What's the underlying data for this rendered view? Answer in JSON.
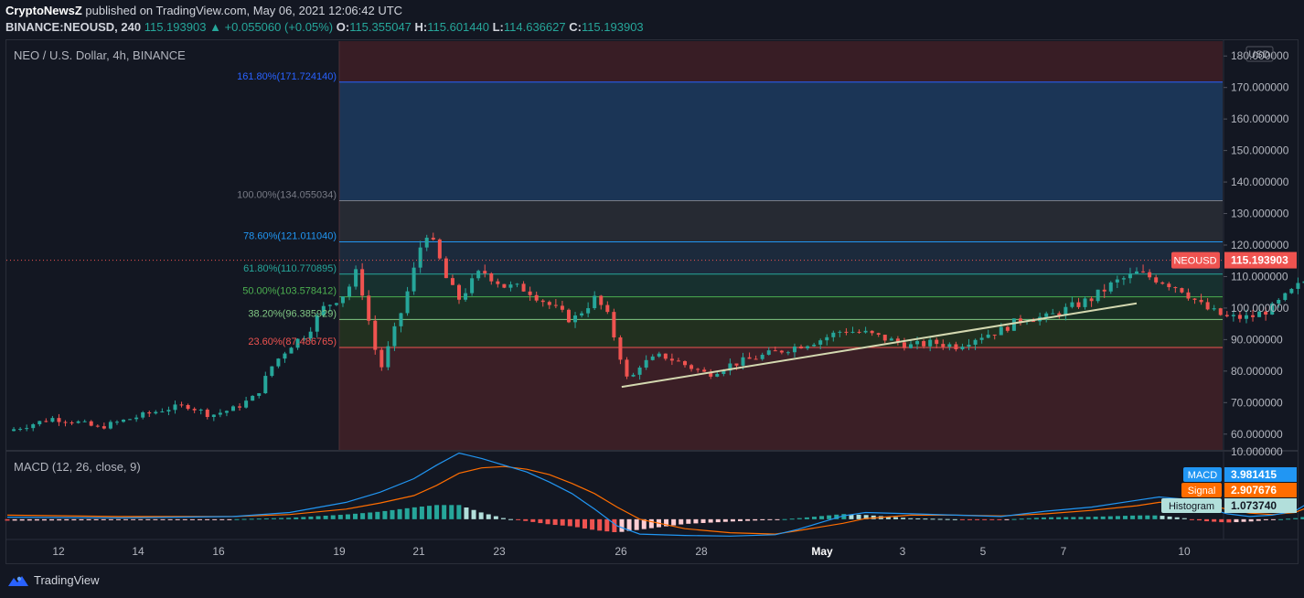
{
  "header": {
    "publisher": "CryptoNewsZ",
    "published_text": "published on TradingView.com, May 06, 2021 12:06:42 UTC",
    "symbol": "BINANCE:NEOUSD, 240",
    "price": "115.193903",
    "change": "+0.055060 (+0.05%)",
    "o_label": "O:",
    "o": "115.355047",
    "h_label": "H:",
    "h": "115.601440",
    "l_label": "L:",
    "l": "114.636627",
    "c_label": "C:",
    "c": "115.193903"
  },
  "footer": {
    "brand": "TradingView"
  },
  "colors": {
    "background": "#131722",
    "up": "#26a69a",
    "down": "#ef5350",
    "fib_blue": "#1e3a5f",
    "fib_red": "#4a2028",
    "trendline": "#d4d8b0",
    "macd": "#2196f3",
    "signal": "#ff6d00"
  },
  "chart_data": [
    {
      "type": "candlestick",
      "title": "NEO / U.S. Dollar, 4h, BINANCE",
      "currency_label": "USD",
      "ylim": [
        55,
        185
      ],
      "yticks": [
        "180.000000",
        "170.000000",
        "160.000000",
        "150.000000",
        "140.000000",
        "130.000000",
        "120.000000",
        "110.000000",
        "100.000000",
        "90.000000",
        "80.000000",
        "70.000000",
        "60.000000"
      ],
      "ytick_values": [
        180,
        170,
        160,
        150,
        140,
        130,
        120,
        110,
        100,
        90,
        80,
        70,
        60
      ],
      "xticks": [
        "12",
        "14",
        "16",
        "19",
        "21",
        "23",
        "26",
        "28",
        "May",
        "3",
        "5",
        "7",
        "10"
      ],
      "last_price_label": "NEOUSD",
      "last_price": "115.193903",
      "last_price_value": 115.19,
      "fib_levels": [
        {
          "label": "161.80%(171.724140)",
          "value": 171.72,
          "color": "#2962ff"
        },
        {
          "label": "100.00%(134.055034)",
          "value": 134.06,
          "color": "#787b86"
        },
        {
          "label": "78.60%(121.011040)",
          "value": 121.01,
          "color": "#2196f3"
        },
        {
          "label": "61.80%(110.770895)",
          "value": 110.77,
          "color": "#26a69a"
        },
        {
          "label": "50.00%(103.578412)",
          "value": 103.58,
          "color": "#4caf50"
        },
        {
          "label": "38.20%(96.385929)",
          "value": 96.39,
          "color": "#81c784"
        },
        {
          "label": "23.60%(87.486765)",
          "value": 87.49,
          "color": "#ef5350"
        }
      ],
      "trendline": {
        "start": [
          0.544,
          75
        ],
        "end": [
          1.0,
          101.5
        ]
      },
      "price_path": [
        [
          0,
          61
        ],
        [
          0.02,
          63
        ],
        [
          0.04,
          65
        ],
        [
          0.06,
          64
        ],
        [
          0.08,
          62
        ],
        [
          0.1,
          64
        ],
        [
          0.12,
          66
        ],
        [
          0.14,
          68
        ],
        [
          0.16,
          69
        ],
        [
          0.18,
          66
        ],
        [
          0.2,
          68
        ],
        [
          0.22,
          72
        ],
        [
          0.235,
          82
        ],
        [
          0.25,
          88
        ],
        [
          0.265,
          92
        ],
        [
          0.28,
          100
        ],
        [
          0.3,
          105
        ],
        [
          0.31,
          112
        ],
        [
          0.32,
          96
        ],
        [
          0.33,
          80
        ],
        [
          0.34,
          90
        ],
        [
          0.35,
          100
        ],
        [
          0.36,
          112
        ],
        [
          0.37,
          125
        ],
        [
          0.38,
          118
        ],
        [
          0.39,
          108
        ],
        [
          0.4,
          103
        ],
        [
          0.42,
          112
        ],
        [
          0.44,
          107
        ],
        [
          0.46,
          106
        ],
        [
          0.48,
          101
        ],
        [
          0.5,
          96
        ],
        [
          0.52,
          103
        ],
        [
          0.53,
          99
        ],
        [
          0.54,
          88
        ],
        [
          0.55,
          76
        ],
        [
          0.56,
          82
        ],
        [
          0.58,
          85
        ],
        [
          0.6,
          82
        ],
        [
          0.62,
          79
        ],
        [
          0.64,
          82
        ],
        [
          0.66,
          84
        ],
        [
          0.68,
          86
        ],
        [
          0.7,
          88
        ],
        [
          0.72,
          90
        ],
        [
          0.74,
          93
        ],
        [
          0.76,
          92
        ],
        [
          0.78,
          90
        ],
        [
          0.8,
          88
        ],
        [
          0.82,
          89
        ],
        [
          0.84,
          88
        ],
        [
          0.86,
          91
        ],
        [
          0.88,
          93
        ],
        [
          0.9,
          97
        ],
        [
          0.92,
          97
        ],
        [
          0.94,
          100
        ],
        [
          0.96,
          103
        ],
        [
          0.98,
          108
        ],
        [
          1.0,
          111
        ],
        [
          1.02,
          109
        ],
        [
          1.04,
          106
        ],
        [
          1.06,
          100
        ],
        [
          1.08,
          97
        ],
        [
          1.1,
          97
        ],
        [
          1.12,
          100
        ],
        [
          1.14,
          106
        ],
        [
          1.16,
          112
        ],
        [
          1.18,
          118
        ],
        [
          1.2,
          115
        ]
      ]
    },
    {
      "type": "macd",
      "title": "MACD (12, 26, close, 9)",
      "ylim": [
        -3,
        10
      ],
      "ytick_label": "10.000000",
      "ytick_value": 10,
      "labels": [
        {
          "name": "MACD",
          "value": "3.981415",
          "color": "#2196f3"
        },
        {
          "name": "Signal",
          "value": "2.907676",
          "color": "#ff6d00"
        },
        {
          "name": "Histogram",
          "value": "1.073740",
          "color": "#b2dfdb"
        }
      ],
      "macd_path": [
        [
          0,
          0.3
        ],
        [
          0.1,
          0.2
        ],
        [
          0.2,
          0.4
        ],
        [
          0.25,
          1
        ],
        [
          0.3,
          2.5
        ],
        [
          0.33,
          4
        ],
        [
          0.36,
          6
        ],
        [
          0.38,
          8
        ],
        [
          0.4,
          9.8
        ],
        [
          0.42,
          9
        ],
        [
          0.44,
          8
        ],
        [
          0.46,
          7
        ],
        [
          0.48,
          5.5
        ],
        [
          0.5,
          3.8
        ],
        [
          0.52,
          1.5
        ],
        [
          0.54,
          -1
        ],
        [
          0.56,
          -2.2
        ],
        [
          0.6,
          -2.4
        ],
        [
          0.64,
          -2.5
        ],
        [
          0.68,
          -2.3
        ],
        [
          0.7,
          -1.5
        ],
        [
          0.74,
          0.5
        ],
        [
          0.76,
          1
        ],
        [
          0.8,
          0.8
        ],
        [
          0.84,
          0.6
        ],
        [
          0.88,
          0.4
        ],
        [
          0.92,
          1.2
        ],
        [
          0.96,
          1.8
        ],
        [
          1.0,
          2.8
        ],
        [
          1.02,
          3.3
        ],
        [
          1.04,
          3
        ],
        [
          1.06,
          1.8
        ],
        [
          1.08,
          0.8
        ],
        [
          1.1,
          0.4
        ],
        [
          1.12,
          0.6
        ],
        [
          1.14,
          1.2
        ],
        [
          1.16,
          3.2
        ],
        [
          1.18,
          3.98
        ]
      ],
      "signal_path": [
        [
          0,
          0.6
        ],
        [
          0.1,
          0.4
        ],
        [
          0.2,
          0.4
        ],
        [
          0.25,
          0.7
        ],
        [
          0.3,
          1.5
        ],
        [
          0.33,
          2.4
        ],
        [
          0.36,
          3.5
        ],
        [
          0.38,
          5
        ],
        [
          0.4,
          6.8
        ],
        [
          0.42,
          7.6
        ],
        [
          0.44,
          7.8
        ],
        [
          0.46,
          7.4
        ],
        [
          0.48,
          6.6
        ],
        [
          0.5,
          5.3
        ],
        [
          0.52,
          3.8
        ],
        [
          0.54,
          1.8
        ],
        [
          0.56,
          0
        ],
        [
          0.6,
          -1.4
        ],
        [
          0.64,
          -2
        ],
        [
          0.68,
          -2.2
        ],
        [
          0.7,
          -1.7
        ],
        [
          0.74,
          -0.6
        ],
        [
          0.76,
          0.1
        ],
        [
          0.8,
          0.6
        ],
        [
          0.84,
          0.6
        ],
        [
          0.88,
          0.5
        ],
        [
          0.92,
          0.8
        ],
        [
          0.96,
          1.3
        ],
        [
          1.0,
          2
        ],
        [
          1.02,
          2.5
        ],
        [
          1.04,
          2.7
        ],
        [
          1.06,
          2.2
        ],
        [
          1.08,
          1.5
        ],
        [
          1.1,
          0.9
        ],
        [
          1.12,
          0.7
        ],
        [
          1.14,
          1
        ],
        [
          1.16,
          2.3
        ],
        [
          1.18,
          2.9
        ]
      ]
    }
  ]
}
